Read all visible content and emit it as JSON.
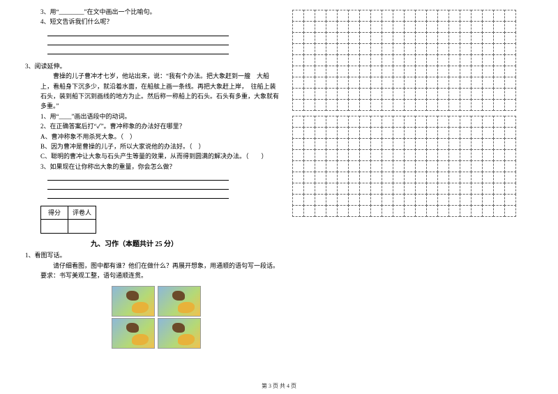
{
  "left": {
    "q3_1": "3、用“________”在文中画出一个比喻句。",
    "q3_2": "4、短文告诉我们什么呢？",
    "reading_label": "3、阅读延伸。",
    "passage": "曹操的儿子曹冲才七岁，他站出来，说：“我有个办法。把大象赶到一艘　大船上，看船身下沉多少，就沿着水面，在船舷上画一条线。再把大象赶上岸，　往船上装石头，装到船下沉到画线的地方为止。然后称一称船上的石头。石头有多重，大象就有多重。”",
    "sub_items": [
      "1、用“____”画出语段中的动词。",
      "2、在正确答案后打“✓”。曹冲称象的办法好在哪里？",
      "A、曹冲称象不用杀死大象。（　）",
      "B、因为曹冲是曹操的儿子，所以大家说他的办法好。（　）",
      "C、聪明的曹冲让大象与石头产生等量的效果，从而得到圆满的解决办法。（　　）",
      "3、如果现在让你称出大象的重量，你会怎么做？"
    ],
    "score_cells": [
      "得分",
      "评卷人"
    ],
    "section_title": "九、习作（本题共计 25 分）",
    "writing_q_label": "1、看图写话。",
    "writing_prompt": "请仔细看图，图中都有谁？他们在做什么？再展开想象，用通顺的语句写一段话。要求：书写美观工整，语句通顺连贯。"
  },
  "grid": {
    "blocks": 2,
    "rows_per_block": 9,
    "cols": 20
  },
  "footer": "第 3 页 共 4 页",
  "colors": {
    "text": "#000000",
    "grid_border": "#666666",
    "background": "#ffffff"
  }
}
